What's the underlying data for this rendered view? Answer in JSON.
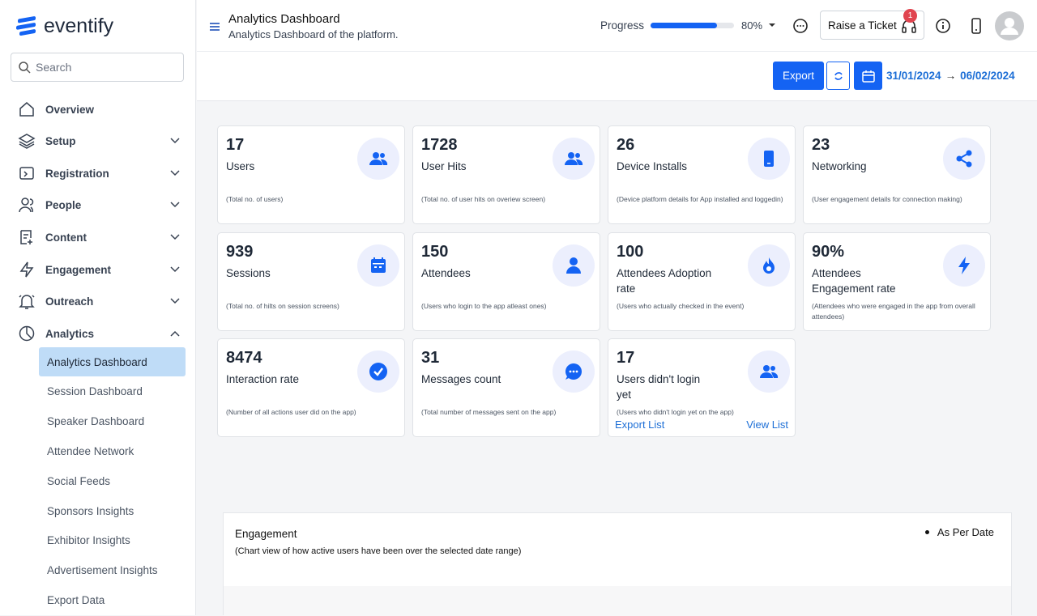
{
  "sidebar": {
    "logo": "eventify",
    "search_placeholder": "Search",
    "nav": [
      {
        "label": "Overview",
        "expandable": false
      },
      {
        "label": "Setup",
        "expandable": true
      },
      {
        "label": "Registration",
        "expandable": true
      },
      {
        "label": "People",
        "expandable": true
      },
      {
        "label": "Content",
        "expandable": true
      },
      {
        "label": "Engagement",
        "expandable": true
      },
      {
        "label": "Outreach",
        "expandable": true
      },
      {
        "label": "Analytics",
        "expandable": true
      }
    ],
    "submenu": [
      "Analytics Dashboard",
      "Session Dashboard",
      "Speaker Dashboard",
      "Attendee Network",
      "Social Feeds",
      "Sponsors Insights",
      "Exhibitor Insights",
      "Advertisement Insights",
      "Export Data"
    ],
    "active_submenu": 0
  },
  "header": {
    "title": "Analytics Dashboard",
    "subtitle": "Analytics Dashboard of the platform.",
    "progress_label": "Progress",
    "progress": {
      "value": 80,
      "label": "80%"
    },
    "ticket": "Raise a Ticket",
    "ticket_badge": "1"
  },
  "toolbar": {
    "export": "Export",
    "date_from": "31/01/2024",
    "arrow": "→",
    "date_to": "06/02/2024"
  },
  "cards": [
    {
      "value": "17",
      "label": "Users",
      "note": "(Total no. of users)"
    },
    {
      "value": "1728",
      "label": "User Hits",
      "note": "(Total no. of user hits on overiew screen)"
    },
    {
      "value": "26",
      "label": "Device Installs",
      "note": "(Device platform details for App installed and loggedin)"
    },
    {
      "value": "23",
      "label": "Networking",
      "note": "(User engagement details for connection making)"
    },
    {
      "value": "939",
      "label": "Sessions",
      "note": "(Total no. of hilts on session screens)"
    },
    {
      "value": "150",
      "label": "Attendees",
      "note": "(Users who login to the app atleast ones)"
    },
    {
      "value": "100",
      "label": "Attendees Adoption rate",
      "note": "(Users who actually checked in the event)"
    },
    {
      "value": "90%",
      "label": "Attendees Engagement rate",
      "note": "(Attendees who were engaged in the app from overall attendees)"
    },
    {
      "value": "8474",
      "label": "Interaction rate",
      "note": "(Number of all actions user did on the app)"
    },
    {
      "value": "31",
      "label": "Messages count",
      "note": "(Total number of messages sent on the app)"
    },
    {
      "value": "17",
      "label": "Users didn't login yet",
      "note": "(Users who didn't login yet on the app)",
      "links": [
        "Export List",
        "View List"
      ]
    }
  ],
  "engagement": {
    "title": "Engagement",
    "subtitle": "(Chart view of how active users have been over the selected date range)",
    "legend": "As Per Date"
  }
}
